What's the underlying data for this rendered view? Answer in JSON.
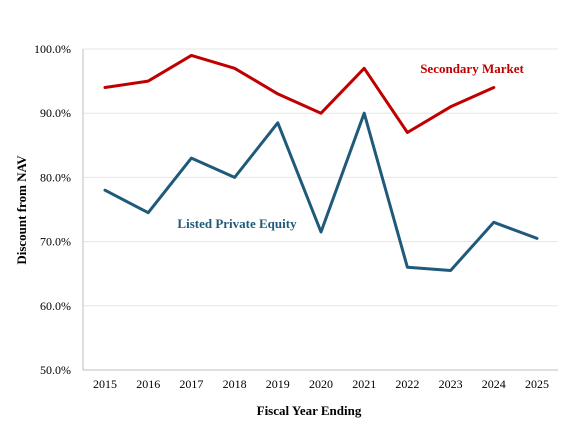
{
  "chart_data": {
    "type": "line",
    "title": "",
    "xlabel": "Fiscal Year Ending",
    "ylabel": "Discount from NAV",
    "x": [
      "2015",
      "2016",
      "2017",
      "2018",
      "2019",
      "2020",
      "2021",
      "2022",
      "2023",
      "2024",
      "2025"
    ],
    "ylim": [
      50,
      100
    ],
    "yticks": [
      50,
      60,
      70,
      80,
      90,
      100
    ],
    "ytick_labels": [
      "50.0%",
      "60.0%",
      "70.0%",
      "80.0%",
      "90.0%",
      "100.0%"
    ],
    "grid": true,
    "legend": "inline labels",
    "series": [
      {
        "name": "Secondary Market",
        "color": "#c00000",
        "values": [
          94,
          95,
          99,
          97,
          93,
          90,
          97,
          87,
          91,
          94,
          null
        ]
      },
      {
        "name": "Listed Private Equity",
        "color": "#1f5a7a",
        "values": [
          78,
          74.5,
          83,
          80,
          88.5,
          71.5,
          90,
          66,
          65.5,
          73,
          70.5
        ]
      }
    ]
  }
}
